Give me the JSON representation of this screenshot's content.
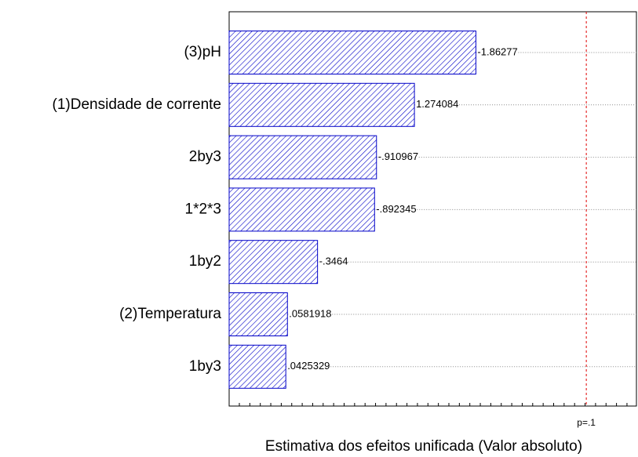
{
  "chart_data": {
    "type": "pareto",
    "xlabel": "Estimativa dos efeitos unificada (Valor absoluto)",
    "categories": [
      "(3)pH",
      "(1)Densidade de corrente",
      "2by3",
      "1*2*3",
      "1by2",
      "(2)Temperatura",
      "1by3"
    ],
    "values": [
      -1.86277,
      1.274084,
      -0.910967,
      -0.892345,
      -0.3464,
      0.0581918,
      0.0425329
    ],
    "value_labels": [
      "-1.86277",
      "1.274084",
      "-.910967",
      "-.892345",
      "-.3464",
      ".0581918",
      ".0425329"
    ],
    "color": "#0000c8",
    "xlim": [
      -0.5,
      3.4
    ],
    "reference": {
      "value": 2.92,
      "label": "p=.1",
      "color": "#e00000"
    },
    "grid": true
  }
}
